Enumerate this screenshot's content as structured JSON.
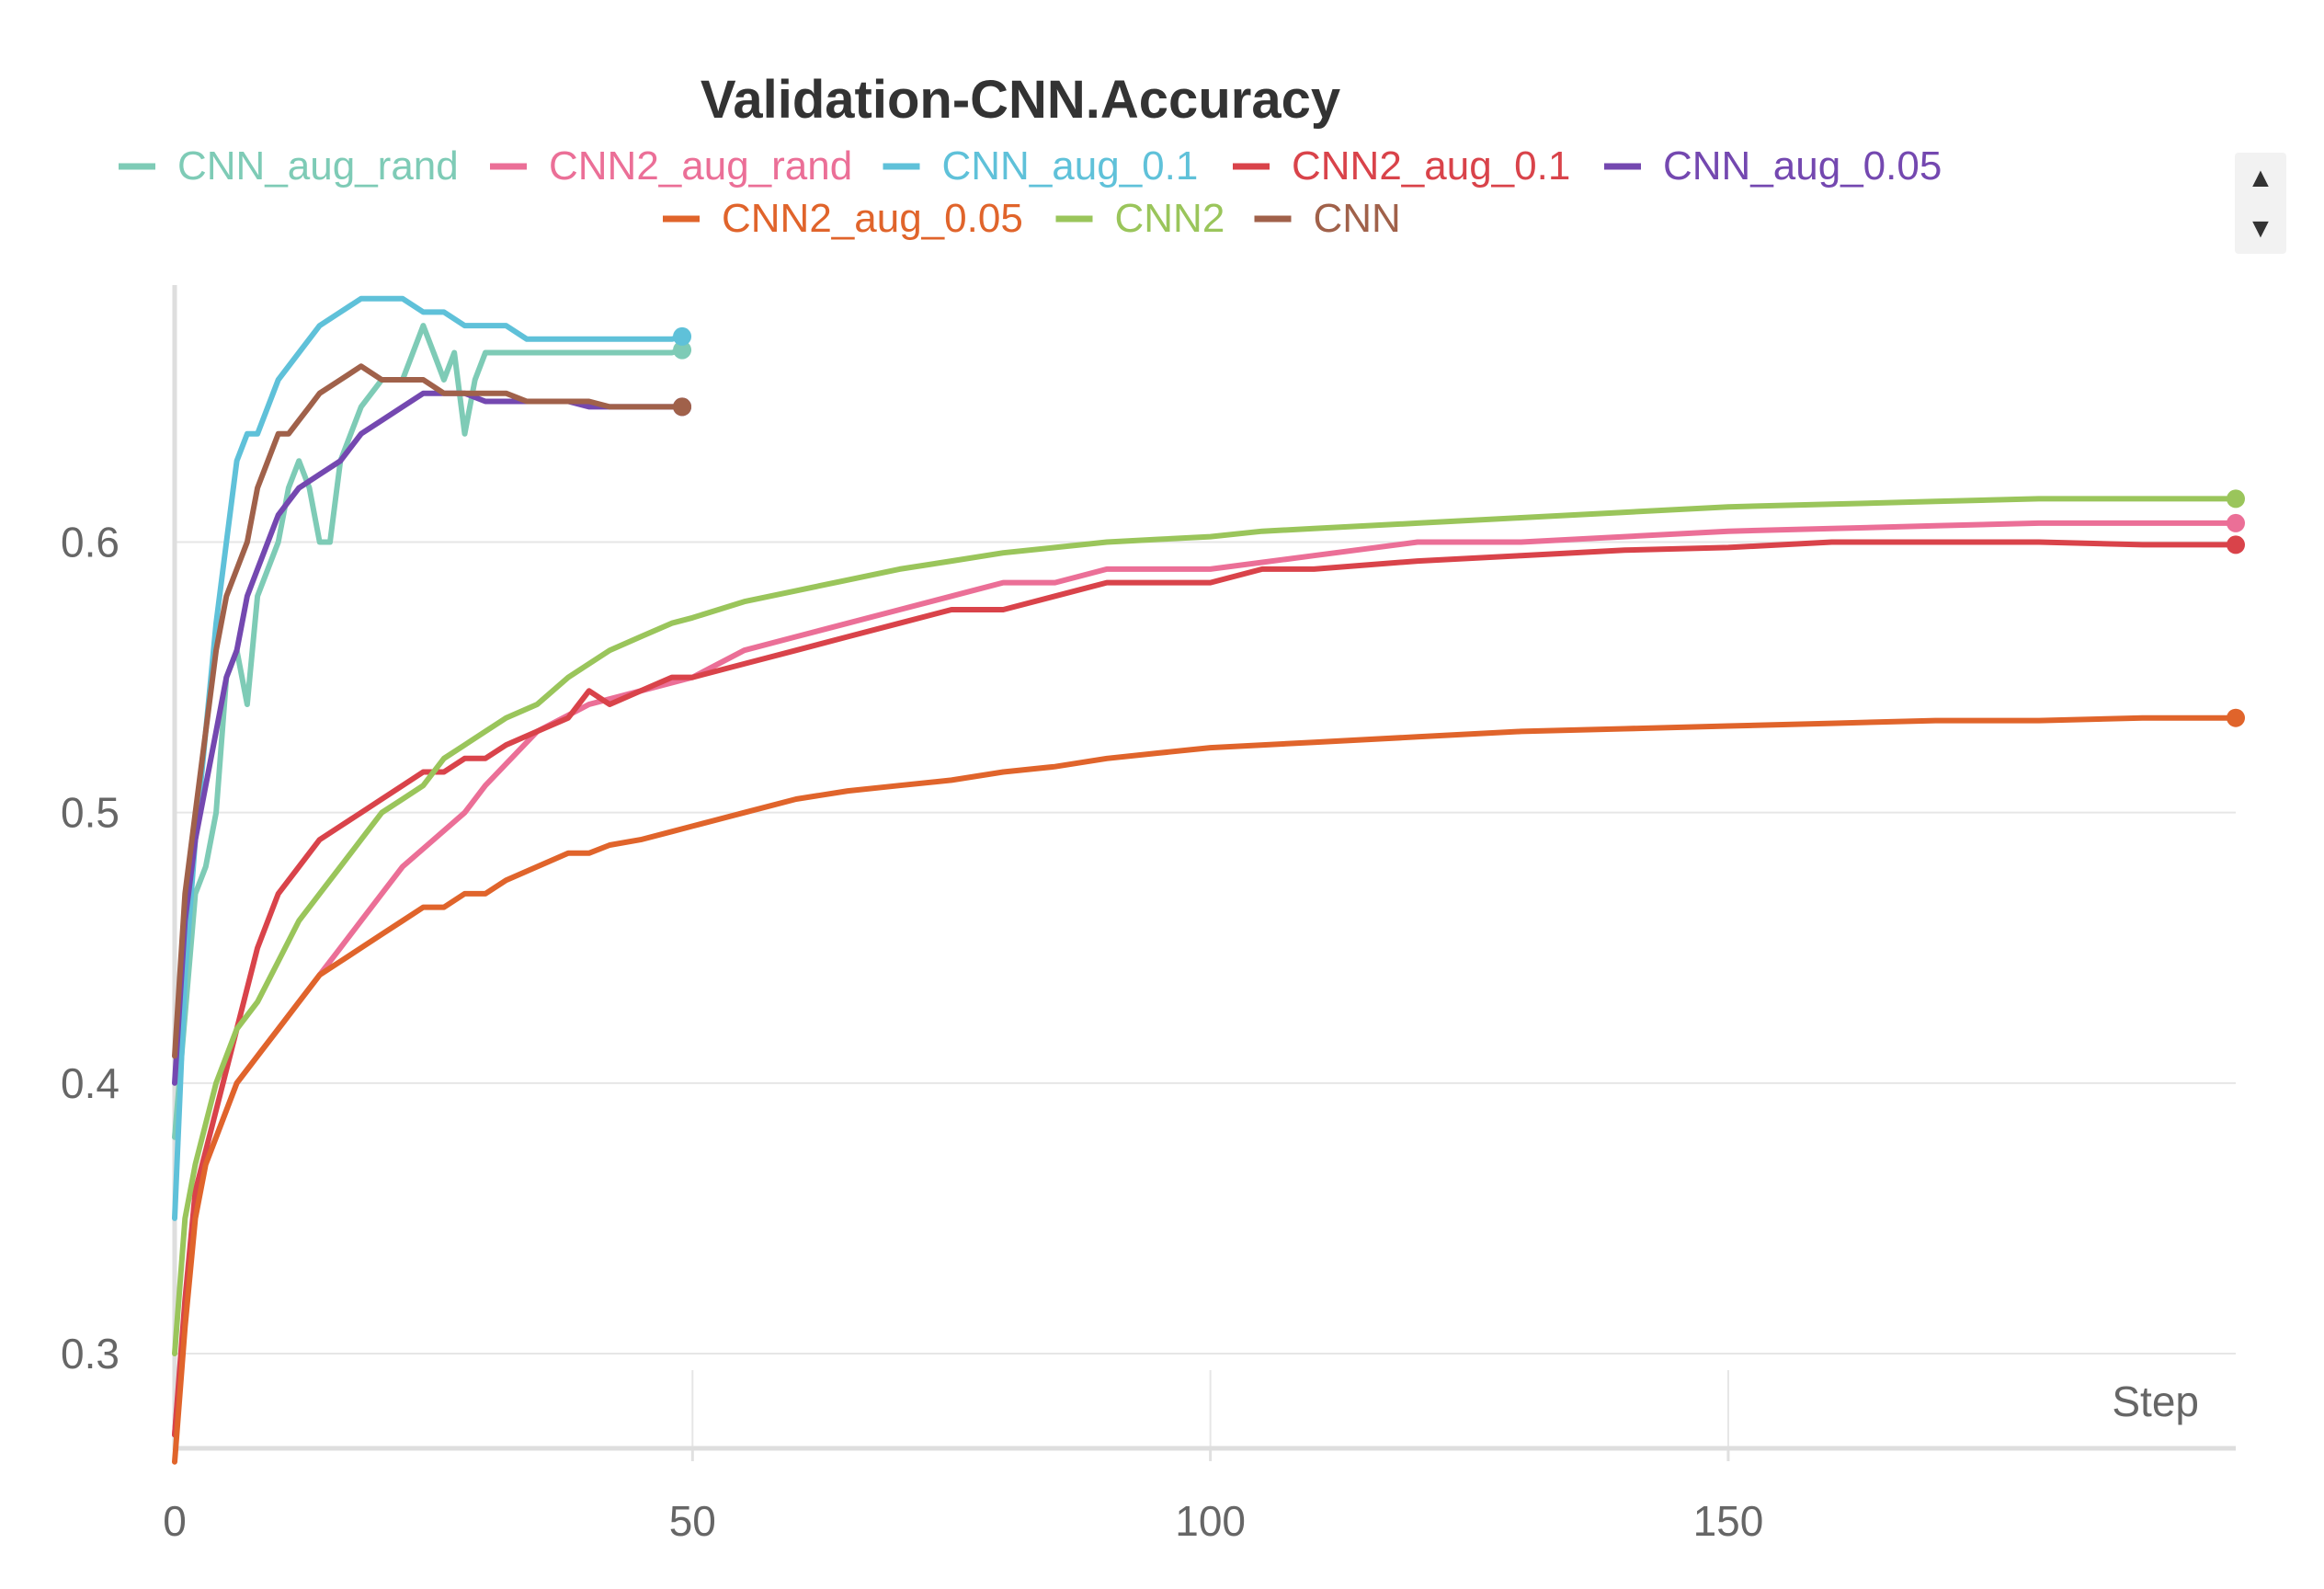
{
  "chart_data": {
    "type": "line",
    "title": "Validation-CNN.Accuracy",
    "xlabel": "Step",
    "ylabel": "",
    "xlim": [
      0,
      199
    ],
    "ylim": [
      0.265,
      0.695
    ],
    "xticks": [
      0,
      50,
      100,
      150
    ],
    "yticks": [
      0.3,
      0.4,
      0.5,
      0.6
    ],
    "grid": true,
    "legend_position": "top-center",
    "series": [
      {
        "name": "CNN_aug_rand",
        "color": "#7ecbb6",
        "x": [
          0,
          2,
          3,
          4,
          5,
          6,
          7,
          8,
          10,
          11,
          12,
          13,
          14,
          15,
          16,
          18,
          20,
          22,
          24,
          25,
          26,
          27,
          28,
          29,
          30,
          32,
          33,
          34,
          35,
          36,
          38,
          40,
          42,
          45,
          48,
          49
        ],
        "y": [
          0.38,
          0.47,
          0.48,
          0.5,
          0.55,
          0.56,
          0.54,
          0.58,
          0.6,
          0.62,
          0.63,
          0.62,
          0.6,
          0.6,
          0.63,
          0.65,
          0.66,
          0.66,
          0.68,
          0.67,
          0.66,
          0.67,
          0.64,
          0.66,
          0.67,
          0.67,
          0.67,
          0.67,
          0.67,
          0.67,
          0.67,
          0.67,
          0.67,
          0.67,
          0.67,
          0.671
        ]
      },
      {
        "name": "CNN2_aug_rand",
        "color": "#eb6f97",
        "x": [
          0,
          2,
          4,
          6,
          8,
          10,
          12,
          14,
          16,
          18,
          20,
          22,
          25,
          28,
          30,
          35,
          40,
          45,
          50,
          55,
          60,
          65,
          70,
          75,
          80,
          85,
          90,
          95,
          100,
          110,
          120,
          130,
          140,
          150,
          160,
          170,
          180,
          190,
          199
        ],
        "y": [
          0.27,
          0.36,
          0.38,
          0.4,
          0.41,
          0.42,
          0.43,
          0.44,
          0.45,
          0.46,
          0.47,
          0.48,
          0.49,
          0.5,
          0.51,
          0.53,
          0.54,
          0.545,
          0.55,
          0.56,
          0.565,
          0.57,
          0.575,
          0.58,
          0.585,
          0.585,
          0.59,
          0.59,
          0.59,
          0.595,
          0.6,
          0.6,
          0.602,
          0.604,
          0.605,
          0.606,
          0.607,
          0.607,
          0.607
        ]
      },
      {
        "name": "CNN_aug_0.1",
        "color": "#5fc1d9",
        "x": [
          0,
          1,
          2,
          3,
          4,
          5,
          6,
          7,
          8,
          10,
          12,
          14,
          16,
          18,
          20,
          22,
          24,
          26,
          28,
          30,
          32,
          34,
          36,
          38,
          40,
          42,
          44,
          46,
          48,
          49
        ],
        "y": [
          0.35,
          0.44,
          0.49,
          0.53,
          0.57,
          0.6,
          0.63,
          0.64,
          0.64,
          0.66,
          0.67,
          0.68,
          0.685,
          0.69,
          0.69,
          0.69,
          0.685,
          0.685,
          0.68,
          0.68,
          0.68,
          0.675,
          0.675,
          0.675,
          0.675,
          0.675,
          0.675,
          0.675,
          0.675,
          0.676
        ]
      },
      {
        "name": "CNN2_aug_0.1",
        "color": "#d9434a",
        "x": [
          0,
          1,
          2,
          4,
          6,
          8,
          10,
          12,
          14,
          16,
          18,
          20,
          22,
          24,
          26,
          28,
          30,
          32,
          35,
          38,
          40,
          42,
          45,
          48,
          50,
          55,
          60,
          65,
          70,
          75,
          80,
          85,
          90,
          95,
          100,
          105,
          110,
          120,
          130,
          140,
          150,
          160,
          170,
          180,
          190,
          199
        ],
        "y": [
          0.27,
          0.32,
          0.36,
          0.39,
          0.42,
          0.45,
          0.47,
          0.48,
          0.49,
          0.495,
          0.5,
          0.505,
          0.51,
          0.515,
          0.515,
          0.52,
          0.52,
          0.525,
          0.53,
          0.535,
          0.545,
          0.54,
          0.545,
          0.55,
          0.55,
          0.555,
          0.56,
          0.565,
          0.57,
          0.575,
          0.575,
          0.58,
          0.585,
          0.585,
          0.585,
          0.59,
          0.59,
          0.593,
          0.595,
          0.597,
          0.598,
          0.6,
          0.6,
          0.6,
          0.599,
          0.599
        ]
      },
      {
        "name": "CNN_aug_0.05",
        "color": "#7448b0",
        "x": [
          0,
          1,
          2,
          3,
          4,
          5,
          6,
          7,
          8,
          9,
          10,
          11,
          12,
          14,
          16,
          18,
          20,
          22,
          24,
          26,
          28,
          30,
          32,
          34,
          36,
          38,
          40,
          42,
          44,
          46,
          48,
          49
        ],
        "y": [
          0.4,
          0.46,
          0.49,
          0.51,
          0.53,
          0.55,
          0.56,
          0.58,
          0.59,
          0.6,
          0.61,
          0.615,
          0.62,
          0.625,
          0.63,
          0.64,
          0.645,
          0.65,
          0.655,
          0.655,
          0.655,
          0.652,
          0.652,
          0.652,
          0.652,
          0.652,
          0.65,
          0.65,
          0.65,
          0.65,
          0.65,
          0.65
        ]
      },
      {
        "name": "CNN2_aug_0.05",
        "color": "#e0642b",
        "x": [
          0,
          1,
          2,
          3,
          4,
          6,
          8,
          10,
          12,
          14,
          16,
          18,
          20,
          22,
          24,
          26,
          28,
          30,
          32,
          35,
          38,
          40,
          42,
          45,
          48,
          50,
          55,
          60,
          65,
          70,
          75,
          80,
          85,
          90,
          95,
          100,
          110,
          120,
          130,
          140,
          150,
          160,
          170,
          180,
          190,
          199
        ],
        "y": [
          0.26,
          0.31,
          0.35,
          0.37,
          0.38,
          0.4,
          0.41,
          0.42,
          0.43,
          0.44,
          0.445,
          0.45,
          0.455,
          0.46,
          0.465,
          0.465,
          0.47,
          0.47,
          0.475,
          0.48,
          0.485,
          0.485,
          0.488,
          0.49,
          0.493,
          0.495,
          0.5,
          0.505,
          0.508,
          0.51,
          0.512,
          0.515,
          0.517,
          0.52,
          0.522,
          0.524,
          0.526,
          0.528,
          0.53,
          0.531,
          0.532,
          0.533,
          0.534,
          0.534,
          0.535,
          0.535
        ]
      },
      {
        "name": "CNN2",
        "color": "#9ac55b",
        "x": [
          0,
          1,
          2,
          4,
          6,
          8,
          10,
          12,
          14,
          16,
          18,
          20,
          22,
          24,
          26,
          28,
          30,
          32,
          35,
          38,
          40,
          42,
          45,
          48,
          50,
          55,
          60,
          65,
          70,
          75,
          80,
          85,
          90,
          95,
          100,
          105,
          110,
          120,
          130,
          140,
          150,
          160,
          170,
          180,
          190,
          199
        ],
        "y": [
          0.3,
          0.35,
          0.37,
          0.4,
          0.42,
          0.43,
          0.445,
          0.46,
          0.47,
          0.48,
          0.49,
          0.5,
          0.505,
          0.51,
          0.52,
          0.525,
          0.53,
          0.535,
          0.54,
          0.55,
          0.555,
          0.56,
          0.565,
          0.57,
          0.572,
          0.578,
          0.582,
          0.586,
          0.59,
          0.593,
          0.596,
          0.598,
          0.6,
          0.601,
          0.602,
          0.604,
          0.605,
          0.607,
          0.609,
          0.611,
          0.613,
          0.614,
          0.615,
          0.616,
          0.616,
          0.616
        ]
      },
      {
        "name": "CNN",
        "color": "#a0614a",
        "x": [
          0,
          1,
          2,
          3,
          4,
          5,
          6,
          7,
          8,
          9,
          10,
          11,
          12,
          13,
          14,
          16,
          18,
          20,
          22,
          24,
          26,
          28,
          30,
          32,
          34,
          36,
          38,
          40,
          42,
          44,
          46,
          48,
          49
        ],
        "y": [
          0.41,
          0.47,
          0.5,
          0.53,
          0.56,
          0.58,
          0.59,
          0.6,
          0.62,
          0.63,
          0.64,
          0.64,
          0.645,
          0.65,
          0.655,
          0.66,
          0.665,
          0.66,
          0.66,
          0.66,
          0.655,
          0.655,
          0.655,
          0.655,
          0.652,
          0.652,
          0.652,
          0.652,
          0.65,
          0.65,
          0.65,
          0.65,
          0.65
        ]
      }
    ]
  }
}
